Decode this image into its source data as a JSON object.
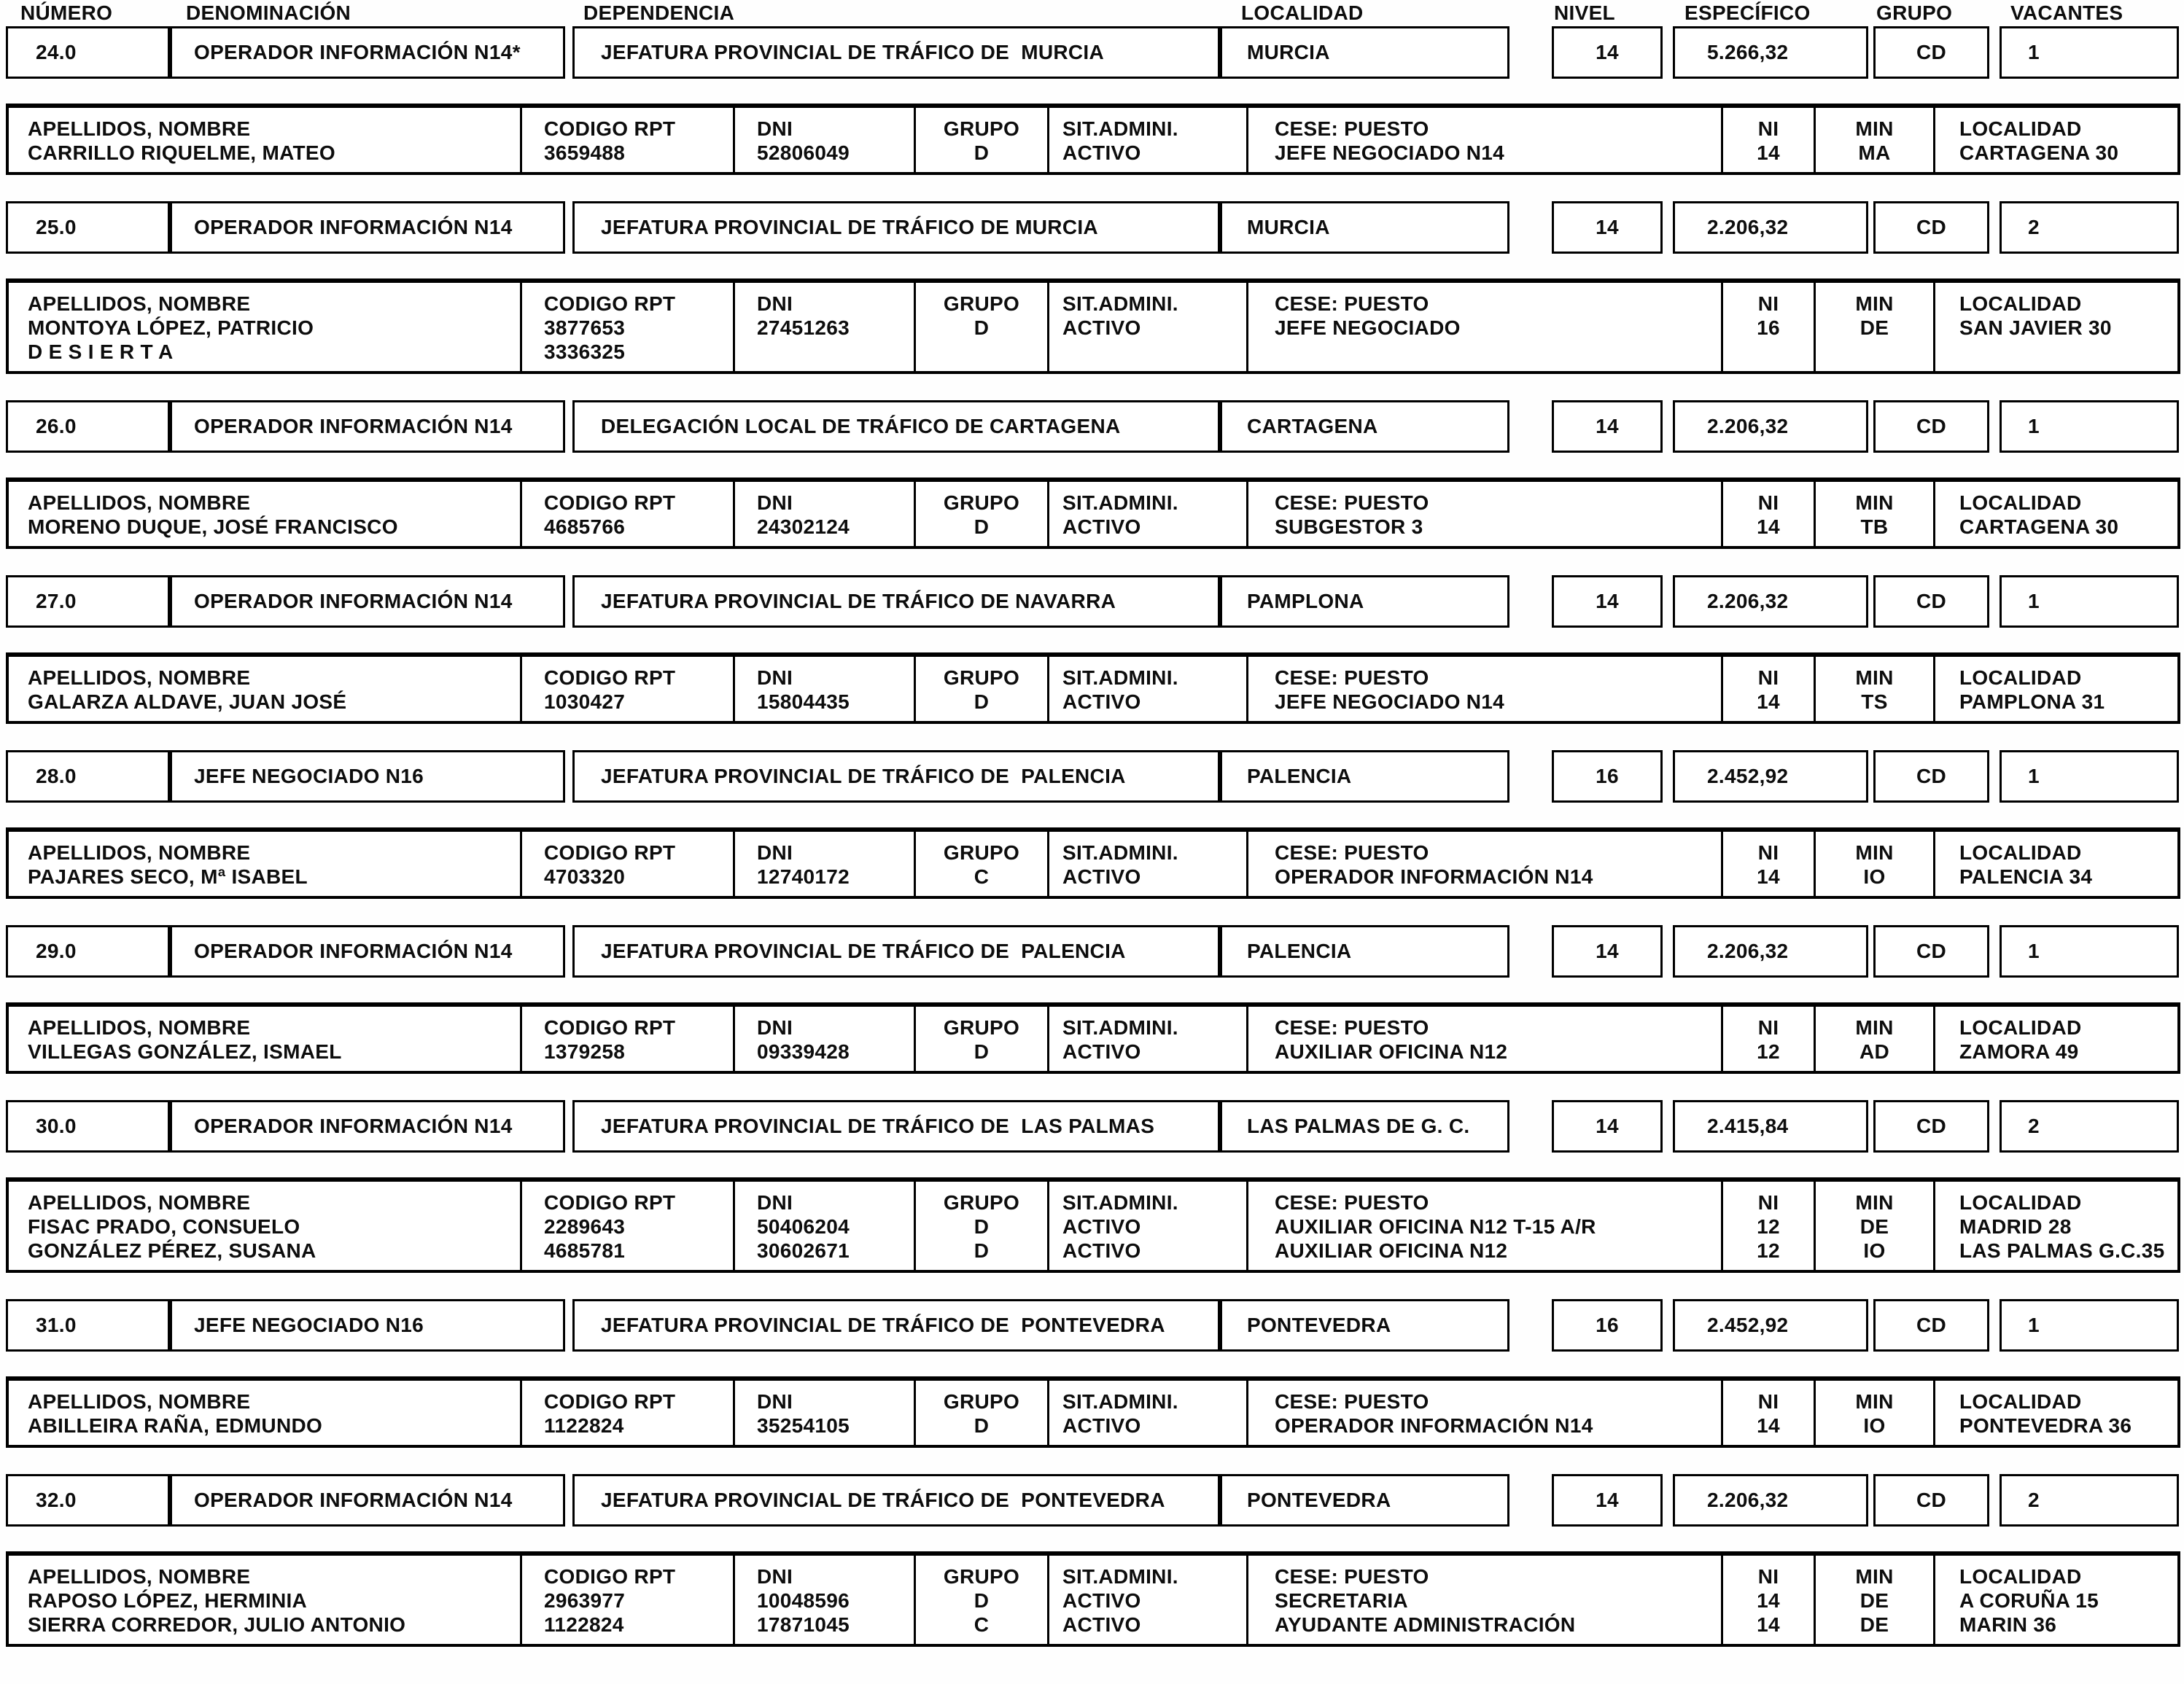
{
  "header": {
    "columns": [
      "NÚMERO",
      "DENOMINACIÓN",
      "DEPENDENCIA",
      "LOCALIDAD",
      "NIVEL",
      "ESPECÍFICO",
      "GRUPO",
      "VACANTES"
    ]
  },
  "labels": {
    "nombre": "APELLIDOS, NOMBRE",
    "codigo": "CODIGO RPT",
    "dni": "DNI",
    "grupo": "GRUPO",
    "sit": "SIT.ADMINI.",
    "cese": "CESE: PUESTO",
    "ni": "NI",
    "min": "MIN",
    "localidad": "LOCALIDAD"
  },
  "records": [
    {
      "numero": "24.0",
      "denominacion": "OPERADOR INFORMACIÓN N14*",
      "dependencia": "JEFATURA PROVINCIAL DE TRÁFICO DE  MURCIA",
      "localidad": "MURCIA",
      "nivel": "14",
      "especifico": "5.266,32",
      "grupo": "CD",
      "vacantes": "1",
      "persons": [
        {
          "nombre": "CARRILLO RIQUELME, MATEO",
          "codigo": "3659488",
          "dni": "52806049",
          "grupo": "D",
          "sit": "ACTIVO",
          "cese": "JEFE NEGOCIADO N14",
          "ni": "14",
          "min": "MA",
          "localidad": "CARTAGENA 30"
        }
      ]
    },
    {
      "numero": "25.0",
      "denominacion": "OPERADOR INFORMACIÓN N14",
      "dependencia": "JEFATURA PROVINCIAL DE TRÁFICO DE MURCIA",
      "localidad": "MURCIA",
      "nivel": "14",
      "especifico": "2.206,32",
      "grupo": "CD",
      "vacantes": "2",
      "persons": [
        {
          "nombre": "MONTOYA LÓPEZ, PATRICIO",
          "codigo": "3877653",
          "dni": "27451263",
          "grupo": "D",
          "sit": "ACTIVO",
          "cese": "JEFE NEGOCIADO",
          "ni": "16",
          "min": "DE",
          "localidad": "SAN JAVIER 30"
        },
        {
          "nombre": "D E S I E R T A",
          "codigo": "3336325",
          "dni": "",
          "grupo": "",
          "sit": "",
          "cese": "",
          "ni": "",
          "min": "",
          "localidad": ""
        }
      ]
    },
    {
      "numero": "26.0",
      "denominacion": "OPERADOR INFORMACIÓN N14",
      "dependencia": "DELEGACIÓN LOCAL DE TRÁFICO DE CARTAGENA",
      "localidad": "CARTAGENA",
      "nivel": "14",
      "especifico": "2.206,32",
      "grupo": "CD",
      "vacantes": "1",
      "persons": [
        {
          "nombre": "MORENO DUQUE, JOSÉ FRANCISCO",
          "codigo": "4685766",
          "dni": "24302124",
          "grupo": "D",
          "sit": "ACTIVO",
          "cese": "SUBGESTOR 3",
          "ni": "14",
          "min": "TB",
          "localidad": "CARTAGENA 30"
        }
      ]
    },
    {
      "numero": "27.0",
      "denominacion": "OPERADOR INFORMACIÓN N14",
      "dependencia": "JEFATURA PROVINCIAL DE TRÁFICO DE NAVARRA",
      "localidad": "PAMPLONA",
      "nivel": "14",
      "especifico": "2.206,32",
      "grupo": "CD",
      "vacantes": "1",
      "persons": [
        {
          "nombre": "GALARZA ALDAVE, JUAN JOSÉ",
          "codigo": "1030427",
          "dni": "15804435",
          "grupo": "D",
          "sit": "ACTIVO",
          "cese": "JEFE NEGOCIADO N14",
          "ni": "14",
          "min": "TS",
          "localidad": "PAMPLONA 31"
        }
      ]
    },
    {
      "numero": "28.0",
      "denominacion": "JEFE NEGOCIADO N16",
      "dependencia": "JEFATURA PROVINCIAL DE TRÁFICO DE  PALENCIA",
      "localidad": "PALENCIA",
      "nivel": "16",
      "especifico": "2.452,92",
      "grupo": "CD",
      "vacantes": "1",
      "persons": [
        {
          "nombre": "PAJARES SECO, Mª ISABEL",
          "codigo": "4703320",
          "dni": "12740172",
          "grupo": "C",
          "sit": "ACTIVO",
          "cese": "OPERADOR INFORMACIÓN N14",
          "ni": "14",
          "min": "IO",
          "localidad": "PALENCIA 34"
        }
      ]
    },
    {
      "numero": "29.0",
      "denominacion": "OPERADOR INFORMACIÓN N14",
      "dependencia": "JEFATURA PROVINCIAL DE TRÁFICO DE  PALENCIA",
      "localidad": "PALENCIA",
      "nivel": "14",
      "especifico": "2.206,32",
      "grupo": "CD",
      "vacantes": "1",
      "persons": [
        {
          "nombre": "VILLEGAS GONZÁLEZ, ISMAEL",
          "codigo": "1379258",
          "dni": "09339428",
          "grupo": "D",
          "sit": "ACTIVO",
          "cese": "AUXILIAR OFICINA N12",
          "ni": "12",
          "min": "AD",
          "localidad": "ZAMORA 49"
        }
      ]
    },
    {
      "numero": "30.0",
      "denominacion": "OPERADOR INFORMACIÓN N14",
      "dependencia": "JEFATURA PROVINCIAL DE TRÁFICO DE  LAS PALMAS",
      "localidad": "LAS PALMAS DE G. C.",
      "nivel": "14",
      "especifico": "2.415,84",
      "grupo": "CD",
      "vacantes": "2",
      "persons": [
        {
          "nombre": "FISAC PRADO, CONSUELO",
          "codigo": "2289643",
          "dni": "50406204",
          "grupo": "D",
          "sit": "ACTIVO",
          "cese": "AUXILIAR OFICINA N12 T-15 A/R",
          "ni": "12",
          "min": "DE",
          "localidad": "MADRID 28"
        },
        {
          "nombre": "GONZÁLEZ PÉREZ, SUSANA",
          "codigo": "4685781",
          "dni": "30602671",
          "grupo": "D",
          "sit": "ACTIVO",
          "cese": "AUXILIAR OFICINA N12",
          "ni": "12",
          "min": "IO",
          "localidad": "LAS PALMAS G.C.35"
        }
      ]
    },
    {
      "numero": "31.0",
      "denominacion": "JEFE NEGOCIADO N16",
      "dependencia": "JEFATURA PROVINCIAL DE TRÁFICO DE  PONTEVEDRA",
      "localidad": "PONTEVEDRA",
      "nivel": "16",
      "especifico": "2.452,92",
      "grupo": "CD",
      "vacantes": "1",
      "persons": [
        {
          "nombre": "ABILLEIRA RAÑA, EDMUNDO",
          "codigo": "1122824",
          "dni": "35254105",
          "grupo": "D",
          "sit": "ACTIVO",
          "cese": "OPERADOR INFORMACIÓN N14",
          "ni": "14",
          "min": "IO",
          "localidad": "PONTEVEDRA 36"
        }
      ]
    },
    {
      "numero": "32.0",
      "denominacion": "OPERADOR INFORMACIÓN N14",
      "dependencia": "JEFATURA PROVINCIAL DE TRÁFICO DE  PONTEVEDRA",
      "localidad": "PONTEVEDRA",
      "nivel": "14",
      "especifico": "2.206,32",
      "grupo": "CD",
      "vacantes": "2",
      "persons": [
        {
          "nombre": "RAPOSO LÓPEZ, HERMINIA",
          "codigo": "2963977",
          "dni": "10048596",
          "grupo": "D",
          "sit": "ACTIVO",
          "cese": "SECRETARIA",
          "ni": "14",
          "min": "DE",
          "localidad": "A CORUÑA 15"
        },
        {
          "nombre": "SIERRA CORREDOR, JULIO ANTONIO",
          "codigo": "1122824",
          "dni": "17871045",
          "grupo": "C",
          "sit": "ACTIVO",
          "cese": "AYUDANTE ADMINISTRACIÓN",
          "ni": "14",
          "min": "DE",
          "localidad": "MARIN 36"
        }
      ]
    }
  ]
}
